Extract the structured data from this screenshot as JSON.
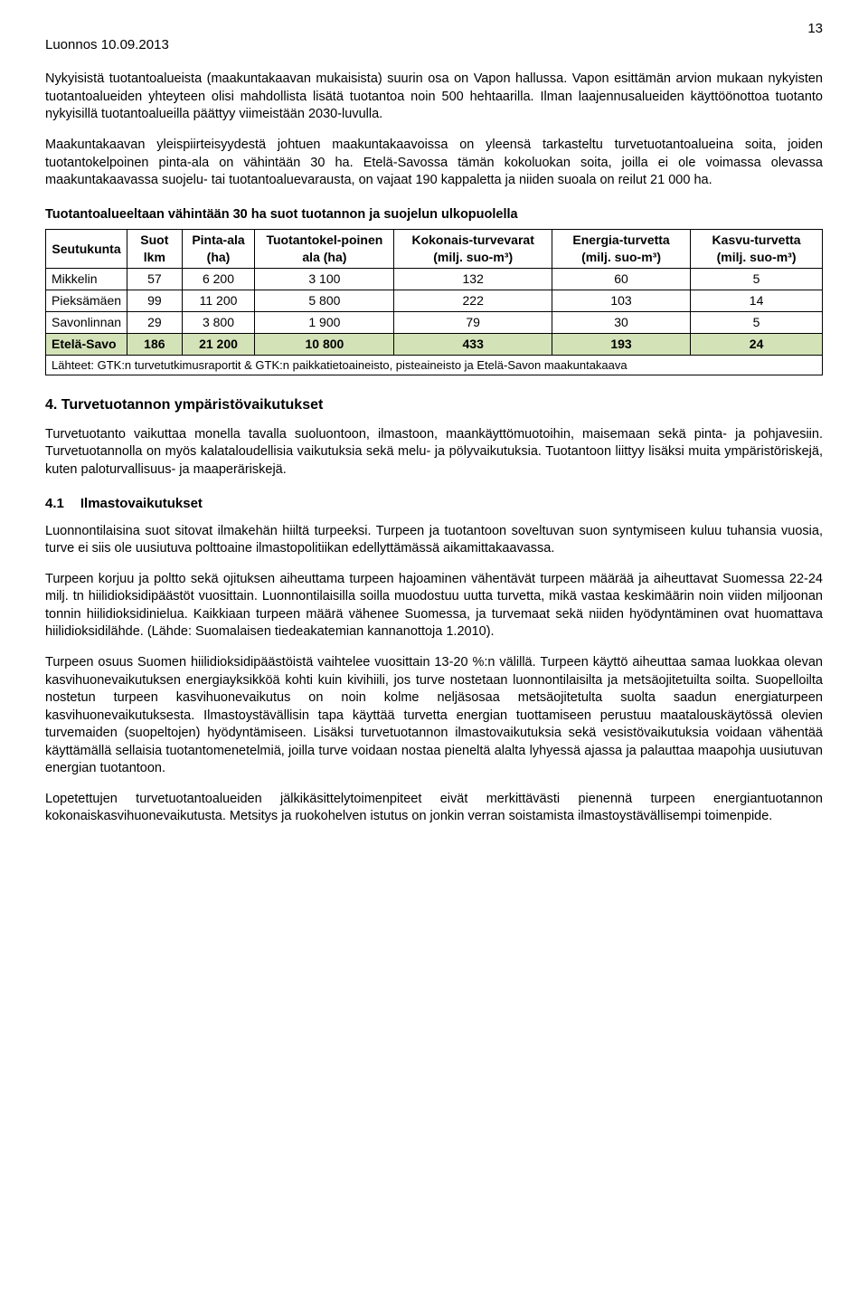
{
  "header": {
    "doc_title": "Luonnos 10.09.2013",
    "page_number": "13"
  },
  "paragraphs": {
    "p1": "Nykyisistä tuotantoalueista (maakuntakaavan mukaisista) suurin osa on Vapon hallussa. Vapon esittämän arvion mukaan nykyisten tuotantoalueiden yhteyteen olisi mahdollista lisätä tuotantoa noin 500 hehtaarilla. Ilman laajennusalueiden käyttöönottoa tuotanto nykyisillä tuotantoalueilla päättyy viimeistään 2030-luvulla.",
    "p2": "Maakuntakaavan yleispiirteisyydestä johtuen maakuntakaavoissa on yleensä tarkasteltu turvetuotantoalueina soita, joiden tuotantokelpoinen pinta-ala on vähintään 30 ha. Etelä-Savossa tämän kokoluokan soita, joilla ei ole voimassa olevassa maakuntakaavassa suojelu- tai tuotantoaluevarausta, on vajaat 190 kappaletta ja niiden suoala on reilut 21 000 ha.",
    "p3": "Turvetuotanto vaikuttaa monella tavalla suoluontoon, ilmastoon, maankäyttömuotoihin, maisemaan sekä pinta- ja pohjavesiin. Turvetuotannolla on myös kalataloudellisia vaikutuksia sekä melu- ja pölyvaikutuksia. Tuotantoon liittyy lisäksi muita ympäristöriskejä, kuten paloturvallisuus- ja maaperäriskejä.",
    "p4": "Luonnontilaisina suot sitovat ilmakehän hiiltä turpeeksi. Turpeen ja tuotantoon soveltuvan suon syntymiseen kuluu tuhansia vuosia, turve ei siis ole uusiutuva polttoaine ilmastopolitiikan edellyttämässä aikamittakaavassa.",
    "p5": "Turpeen korjuu ja poltto sekä ojituksen aiheuttama turpeen hajoaminen vähentävät turpeen määrää ja aiheuttavat Suomessa 22-24 milj. tn hiilidioksidipäästöt vuosittain. Luonnontilaisilla soilla muodostuu uutta turvetta, mikä vastaa keskimäärin noin viiden miljoonan tonnin hiilidioksidinielua. Kaikkiaan turpeen määrä vähenee Suomessa, ja turvemaat sekä niiden hyödyntäminen ovat huomattava hiilidioksidilähde. (Lähde: Suomalaisen tiedeakatemian kannanottoja 1.2010).",
    "p6": "Turpeen osuus Suomen hiilidioksidipäästöistä vaihtelee vuosittain 13-20 %:n välillä. Turpeen käyttö aiheuttaa samaa luokkaa olevan kasvihuonevaikutuksen energiayksikköä kohti kuin kivihiili, jos turve nostetaan luonnontilaisilta ja metsäojitetuilta soilta. Suopelloilta nostetun turpeen kasvihuonevaikutus on noin kolme neljäsosaa metsäojitetulta suolta saadun energiaturpeen kasvihuonevaikutuksesta. Ilmastoystävällisin tapa käyttää turvetta energian tuottamiseen perustuu maatalouskäytössä olevien turvemaiden (suopeltojen) hyödyntämiseen. Lisäksi turvetuotannon ilmastovaikutuksia sekä vesistövaikutuksia voidaan vähentää käyttämällä sellaisia tuotantomenetelmiä, joilla turve voidaan nostaa pieneltä alalta lyhyessä ajassa ja palauttaa maapohja uusiutuvan energian tuotantoon.",
    "p7": "Lopetettujen turvetuotantoalueiden jälkikäsittelytoimenpiteet eivät merkittävästi pienennä turpeen energiantuotannon kokonaiskasvihuonevaikutusta. Metsitys ja ruokohelven istutus on jonkin verran soistamista ilmastoystävällisempi toimenpide."
  },
  "table": {
    "title": "Tuotantoalueeltaan vähintään 30 ha suot tuotannon ja suojelun ulkopuolella",
    "columns": [
      "Seutukunta",
      "Suot lkm",
      "Pinta-ala (ha)",
      "Tuotantokel-poinen ala (ha)",
      "Kokonais-turvevarat (milj. suo-m³)",
      "Energia-turvetta (milj. suo-m³)",
      "Kasvu-turvetta (milj. suo-m³)"
    ],
    "rows": [
      [
        "Mikkelin",
        "57",
        "6 200",
        "3 100",
        "132",
        "60",
        "5"
      ],
      [
        "Pieksämäen",
        "99",
        "11 200",
        "5 800",
        "222",
        "103",
        "14"
      ],
      [
        "Savonlinnan",
        "29",
        "3 800",
        "1 900",
        "79",
        "30",
        "5"
      ]
    ],
    "total_row": [
      "Etelä-Savo",
      "186",
      "21 200",
      "10 800",
      "433",
      "193",
      "24"
    ],
    "total_row_bg": "#d4e2b8",
    "source": "Lähteet: GTK:n turvetutkimusraportit & GTK:n paikkatietoaineisto, pisteaineisto ja Etelä-Savon maakuntakaava"
  },
  "sections": {
    "s4_num": "4.",
    "s4_title": "Turvetuotannon ympäristövaikutukset",
    "s4_1_num": "4.1",
    "s4_1_title": "Ilmastovaikutukset"
  }
}
